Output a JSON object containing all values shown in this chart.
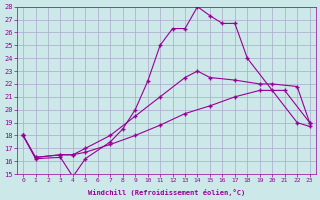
{
  "xlabel": "Windchill (Refroidissement éolien,°C)",
  "xlim": [
    -0.5,
    23.5
  ],
  "ylim": [
    15,
    28
  ],
  "yticks": [
    15,
    16,
    17,
    18,
    19,
    20,
    21,
    22,
    23,
    24,
    25,
    26,
    27,
    28
  ],
  "xticks": [
    0,
    1,
    2,
    3,
    4,
    5,
    6,
    7,
    8,
    9,
    10,
    11,
    12,
    13,
    14,
    15,
    16,
    17,
    18,
    19,
    20,
    21,
    22,
    23
  ],
  "background_color": "#cce8e8",
  "grid_color": "#aaaacc",
  "line_color": "#990099",
  "line1_x": [
    0,
    1,
    3,
    4,
    5,
    7,
    8,
    9,
    10,
    11,
    12,
    13,
    14,
    15,
    16,
    17,
    18,
    20,
    22,
    23
  ],
  "line1_y": [
    18,
    16.2,
    16.3,
    14.8,
    16.2,
    17.5,
    18.5,
    20.0,
    22.2,
    25.0,
    26.3,
    26.3,
    28.0,
    27.3,
    26.7,
    26.7,
    24.0,
    21.5,
    19.0,
    18.7
  ],
  "line2_x": [
    0,
    1,
    3,
    4,
    5,
    7,
    9,
    11,
    13,
    14,
    15,
    17,
    19,
    20,
    22,
    23
  ],
  "line2_y": [
    18,
    16.3,
    16.5,
    16.5,
    17.0,
    18.0,
    19.5,
    21.0,
    22.5,
    23.0,
    22.5,
    22.3,
    22.0,
    22.0,
    21.8,
    19.0
  ],
  "line3_x": [
    0,
    1,
    3,
    4,
    5,
    7,
    9,
    11,
    13,
    15,
    17,
    19,
    21,
    23
  ],
  "line3_y": [
    18,
    16.3,
    16.5,
    16.5,
    16.7,
    17.3,
    18.0,
    18.8,
    19.7,
    20.3,
    21.0,
    21.5,
    21.5,
    19.0
  ]
}
